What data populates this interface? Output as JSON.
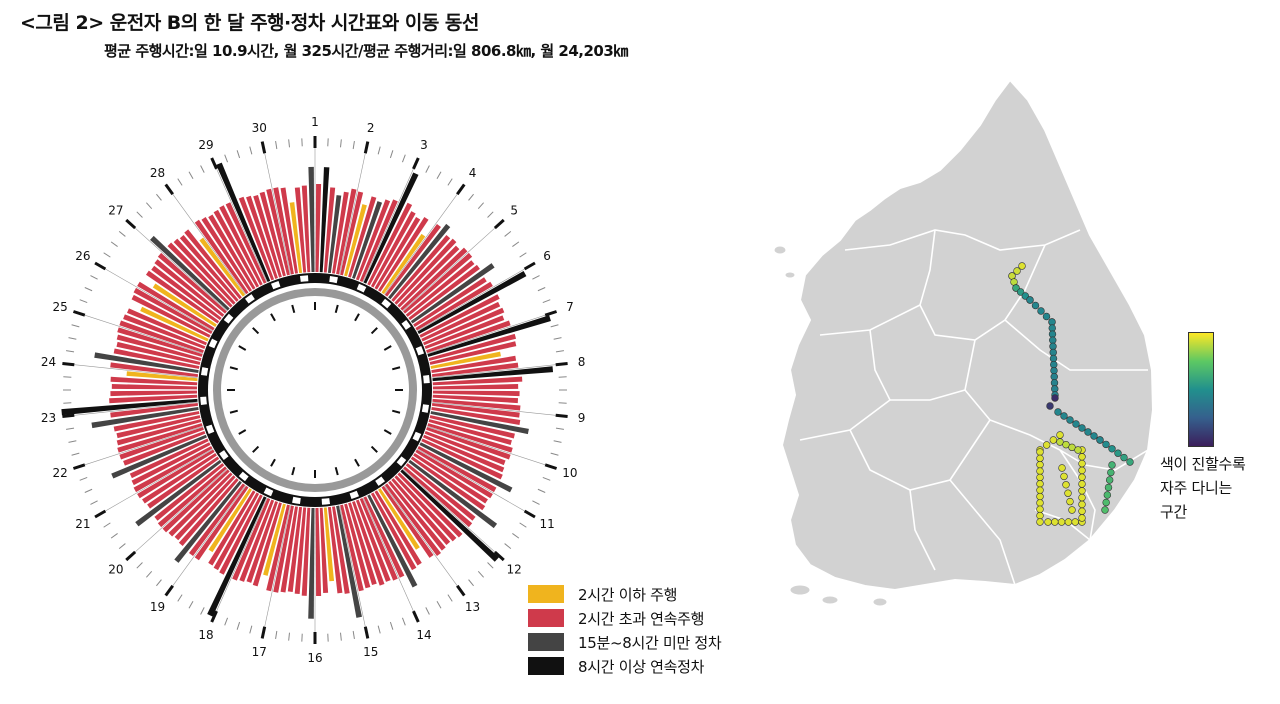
{
  "title": "<그림 2> 운전자 B의 한 달 주행·정차 시간표와 이동 동선",
  "subtitle": "평균 주행시간:일 10.9시간, 월 325시간/평균 주행거리:일 806.8㎞, 월 24,203㎞",
  "legend": [
    {
      "label": "2시간 이하 주행",
      "color": "#f0b41e"
    },
    {
      "label": "2시간 초과 연속주행",
      "color": "#cf3a4b"
    },
    {
      "label": "15분~8시간 미만 정차",
      "color": "#444444"
    },
    {
      "label": "8시간 이상 연속정차",
      "color": "#111111"
    }
  ],
  "colorbar_label_lines": [
    "색이 진할수록",
    "자주 다니는",
    "구간"
  ],
  "chart_data": {
    "type": "radial-bar",
    "days": [
      "1",
      "2",
      "3",
      "4",
      "5",
      "6",
      "7",
      "8",
      "9",
      "10",
      "11",
      "12",
      "13",
      "14",
      "15",
      "16",
      "17",
      "18",
      "19",
      "20",
      "21",
      "22",
      "23",
      "24",
      "25",
      "26",
      "27",
      "28",
      "29",
      "30"
    ],
    "segments_per_day": 6,
    "segment_categories": [
      "2시간 이하 주행",
      "2시간 초과 연속주행",
      "15분~8시간 미만 정차",
      "8시간 이상 연속정차"
    ],
    "segment_category_index": [
      1,
      3,
      1,
      2,
      1,
      1,
      1,
      0,
      1,
      2,
      1,
      1,
      3,
      1,
      1,
      1,
      1,
      0,
      1,
      2,
      1,
      1,
      1,
      1,
      1,
      1,
      1,
      2,
      1,
      1,
      3,
      1,
      1,
      1,
      1,
      1,
      3,
      1,
      1,
      0,
      1,
      1,
      3,
      1,
      1,
      1,
      1,
      1,
      1,
      1,
      2,
      1,
      1,
      1,
      1,
      1,
      1,
      1,
      2,
      1,
      1,
      1,
      1,
      2,
      1,
      1,
      3,
      1,
      1,
      1,
      1,
      1,
      1,
      0,
      1,
      1,
      2,
      1,
      1,
      1,
      1,
      1,
      1,
      1,
      2,
      1,
      1,
      0,
      1,
      1,
      2,
      1,
      1,
      1,
      1,
      1,
      1,
      0,
      1,
      1,
      1,
      1,
      3,
      1,
      1,
      1,
      0,
      1,
      1,
      2,
      1,
      1,
      1,
      1,
      1,
      1,
      2,
      1,
      1,
      1,
      1,
      1,
      1,
      2,
      1,
      1,
      1,
      1,
      1,
      1,
      2,
      1,
      3,
      1,
      1,
      1,
      1,
      0,
      1,
      2,
      1,
      1,
      1,
      1,
      1,
      1,
      1,
      0,
      1,
      1,
      1,
      0,
      1,
      1,
      1,
      1,
      2,
      1,
      1,
      1,
      1,
      0,
      1,
      1,
      1,
      1,
      1,
      1,
      3,
      1,
      1,
      1,
      1,
      1,
      1,
      1,
      0,
      1,
      1,
      2
    ],
    "segment_length": [
      0.62,
      0.74,
      0.6,
      0.55,
      0.58,
      0.61,
      0.6,
      0.52,
      0.59,
      0.57,
      0.6,
      0.62,
      0.85,
      0.64,
      0.6,
      0.58,
      0.61,
      0.5,
      0.62,
      0.66,
      0.6,
      0.61,
      0.59,
      0.62,
      0.62,
      0.6,
      0.61,
      0.7,
      0.6,
      0.62,
      0.86,
      0.62,
      0.6,
      0.61,
      0.59,
      0.62,
      0.9,
      0.63,
      0.62,
      0.5,
      0.6,
      0.61,
      0.85,
      0.63,
      0.6,
      0.61,
      0.6,
      0.62,
      0.62,
      0.63,
      0.7,
      0.61,
      0.6,
      0.62,
      0.62,
      0.6,
      0.61,
      0.62,
      0.72,
      0.62,
      0.62,
      0.61,
      0.62,
      0.76,
      0.61,
      0.62,
      0.92,
      0.62,
      0.61,
      0.6,
      0.61,
      0.62,
      0.6,
      0.5,
      0.6,
      0.61,
      0.72,
      0.62,
      0.62,
      0.61,
      0.62,
      0.6,
      0.61,
      0.62,
      0.8,
      0.62,
      0.61,
      0.52,
      0.6,
      0.62,
      0.78,
      0.62,
      0.61,
      0.6,
      0.61,
      0.62,
      0.62,
      0.52,
      0.61,
      0.6,
      0.61,
      0.62,
      0.92,
      0.62,
      0.61,
      0.6,
      0.52,
      0.62,
      0.62,
      0.72,
      0.61,
      0.6,
      0.61,
      0.62,
      0.62,
      0.61,
      0.74,
      0.6,
      0.61,
      0.62,
      0.62,
      0.61,
      0.6,
      0.72,
      0.61,
      0.62,
      0.62,
      0.61,
      0.6,
      0.61,
      0.76,
      0.62,
      0.96,
      0.62,
      0.61,
      0.6,
      0.61,
      0.5,
      0.62,
      0.74,
      0.61,
      0.6,
      0.61,
      0.62,
      0.62,
      0.61,
      0.6,
      0.52,
      0.61,
      0.62,
      0.62,
      0.52,
      0.61,
      0.6,
      0.61,
      0.62,
      0.74,
      0.62,
      0.61,
      0.6,
      0.61,
      0.5,
      0.62,
      0.61,
      0.6,
      0.61,
      0.62,
      0.62,
      0.9,
      0.62,
      0.61,
      0.6,
      0.61,
      0.62,
      0.62,
      0.61,
      0.5,
      0.6,
      0.61,
      0.74
    ],
    "colorbar": {
      "low": "#3b1f5c",
      "high": "#fde725"
    }
  }
}
